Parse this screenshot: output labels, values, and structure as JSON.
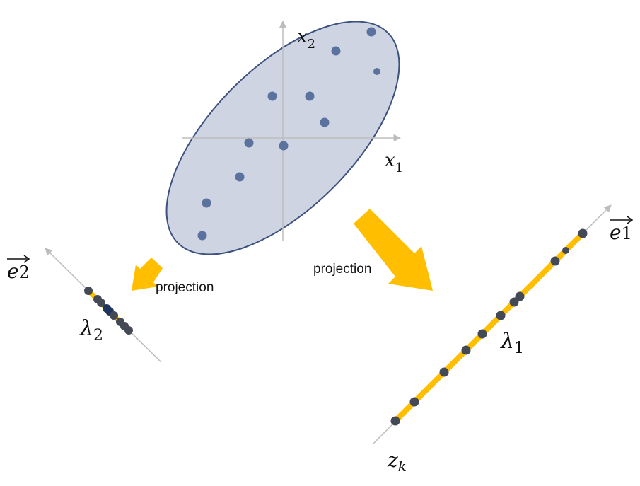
{
  "labels": {
    "x1_main": "x",
    "x1_sub": "1",
    "x2_main": "x",
    "x2_sub": "2",
    "e1_main": "e",
    "e1_sub": "1",
    "e2_main": "e",
    "e2_sub": "2",
    "lambda1_main": "λ",
    "lambda1_sub": "1",
    "lambda2_main": "λ",
    "lambda2_sub": "2",
    "zk_main": "z",
    "zk_sub": "k",
    "projection_left": "projection",
    "projection_right": "projection"
  },
  "colors": {
    "ellipse_fill": "#ced4e2",
    "ellipse_stroke": "#3c5180",
    "point": "#5b729e",
    "projected_point": "#444a55",
    "projected_point_dark": "#1e3560",
    "band": "#ffbf00",
    "arrow": "#ffbf00",
    "axis": "#bdbdbd"
  }
}
